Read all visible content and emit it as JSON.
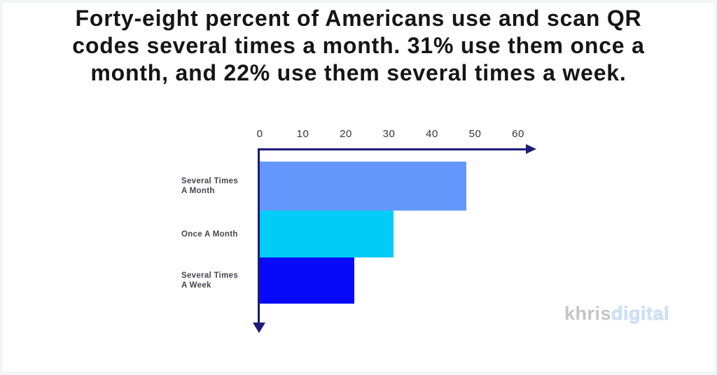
{
  "page": {
    "background": "#f3f4f6",
    "canvas_background": "#ffffff"
  },
  "title": {
    "full_text": "Forty-eight percent of Americans use and scan QR codes several times a month. 31% use them once a month, and 22% use them several times a week.",
    "lines": [
      "Forty-eight percent of Americans use and scan QR",
      "codes several times a month. 31% use them once a",
      "month, and 22% use them several times a week."
    ],
    "color": "#151515"
  },
  "chart_data": {
    "type": "bar",
    "orientation": "horizontal",
    "title": "",
    "xlabel": "",
    "ylabel": "",
    "categories": [
      "Several Times A Month",
      "Once A Month",
      "Several Times A Week"
    ],
    "category_label_lines": [
      [
        "Several Times",
        "A Month"
      ],
      [
        "Once A Month"
      ],
      [
        "Several Times",
        "A Week"
      ]
    ],
    "values": [
      48,
      31,
      22
    ],
    "unit": "percent of Americans",
    "bar_colors": [
      "#6397fb",
      "#00ccf7",
      "#0909fa"
    ],
    "x_ticks": [
      0,
      10,
      20,
      30,
      40,
      50,
      60
    ],
    "xlim": [
      0,
      63
    ],
    "axis_color": "#1b1b78",
    "tick_color": "#333333",
    "label_color": "#45454e",
    "grid": false,
    "legend": false
  },
  "watermark": {
    "prefix": "khris",
    "suffix": "digital",
    "prefix_color": "#c4c4c4",
    "suffix_color": "#cfe2f5"
  }
}
